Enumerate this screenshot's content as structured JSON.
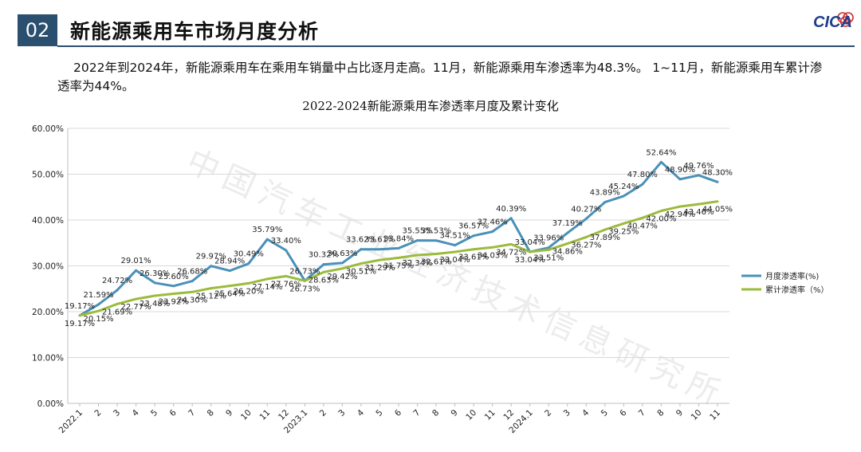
{
  "header": {
    "badge": "02",
    "title": "新能源乘用车市场月度分析"
  },
  "logo": {
    "text": "CICA"
  },
  "summary": "2022年到2024年，新能源乘用车在乘用车销量中占比逐月走高。11月，新能源乘用车渗透率为48.3%。 1~11月，新能源乘用车累计渗透率为44%。",
  "watermark": "中国汽车工业经济技术信息研究所",
  "colors": {
    "header_bg": "#2b4f6e",
    "monthly": "#4a90b8",
    "cumulative": "#9bbb3c"
  },
  "chart_data": {
    "type": "line",
    "title": "2022-2024新能源乘用车渗透率月度及累计变化",
    "xlabel": "",
    "ylabel": "",
    "ylim": [
      0,
      60
    ],
    "yticks": [
      "0.00%",
      "10.00%",
      "20.00%",
      "30.00%",
      "40.00%",
      "50.00%",
      "60.00%"
    ],
    "grid": true,
    "legend_position": "right",
    "categories": [
      "2022.1",
      "2",
      "3",
      "4",
      "5",
      "6",
      "7",
      "8",
      "9",
      "10",
      "11",
      "12",
      "2023.1",
      "2",
      "3",
      "4",
      "5",
      "6",
      "7",
      "8",
      "9",
      "10",
      "11",
      "12",
      "2024.1",
      "2",
      "3",
      "4",
      "5",
      "6",
      "7",
      "8",
      "9",
      "10",
      "11"
    ],
    "series": [
      {
        "name": "月度渗透率(%)",
        "values": [
          19.17,
          21.59,
          24.72,
          29.01,
          26.3,
          25.6,
          26.68,
          29.97,
          28.94,
          30.49,
          35.79,
          33.4,
          26.73,
          30.32,
          30.63,
          33.62,
          33.61,
          33.84,
          35.55,
          35.53,
          34.51,
          36.57,
          37.46,
          40.39,
          33.04,
          33.96,
          37.19,
          40.27,
          43.89,
          45.24,
          47.8,
          52.64,
          48.9,
          49.76,
          48.3
        ],
        "labels": [
          "19.17%",
          "21.59%",
          "24.72%",
          "29.01%",
          "26.30%",
          "25.60%",
          "26.68%",
          "29.97%",
          "28.94%",
          "30.49%",
          "35.79%",
          "33.40%",
          "26.73%",
          "30.32%",
          "30.63%",
          "33.62%",
          "33.61%",
          "33.84%",
          "35.55%",
          "35.53%",
          "34.51%",
          "36.57%",
          "37.46%",
          "40.39%",
          "33.04%",
          "33.96%",
          "37.19%",
          "40.27%",
          "43.89%",
          "45.24%",
          "47.80%",
          "52.64%",
          "48.90%",
          "49.76%",
          "48.30%"
        ]
      },
      {
        "name": "累计渗透率（%）",
        "values": [
          19.17,
          20.15,
          21.69,
          22.77,
          23.48,
          23.92,
          24.3,
          25.12,
          25.64,
          26.2,
          27.14,
          27.76,
          26.73,
          28.63,
          29.42,
          30.51,
          31.29,
          31.75,
          32.34,
          32.61,
          33.04,
          33.61,
          34.03,
          34.72,
          33.04,
          33.51,
          34.86,
          36.27,
          37.89,
          39.25,
          40.47,
          42.0,
          42.94,
          43.46,
          44.05
        ],
        "labels": [
          "19.17%",
          "20.15%",
          "21.69%",
          "22.77%",
          "23.48%",
          "23.92%",
          "24.30%",
          "25.12%",
          "25.64%",
          "26.20%",
          "27.14%",
          "27.76%",
          "26.73%",
          "28.63%",
          "29.42%",
          "30.51%",
          "31.29%",
          "31.75%",
          "32.34%",
          "32.61%",
          "33.04%",
          "33.61%",
          "34.03%",
          "34.72%",
          "33.04%",
          "33.51%",
          "34.86%",
          "36.27%",
          "37.89%",
          "39.25%",
          "40.47%",
          "42.00%",
          "42.94%",
          "43.46%",
          "44.05%"
        ]
      }
    ]
  }
}
